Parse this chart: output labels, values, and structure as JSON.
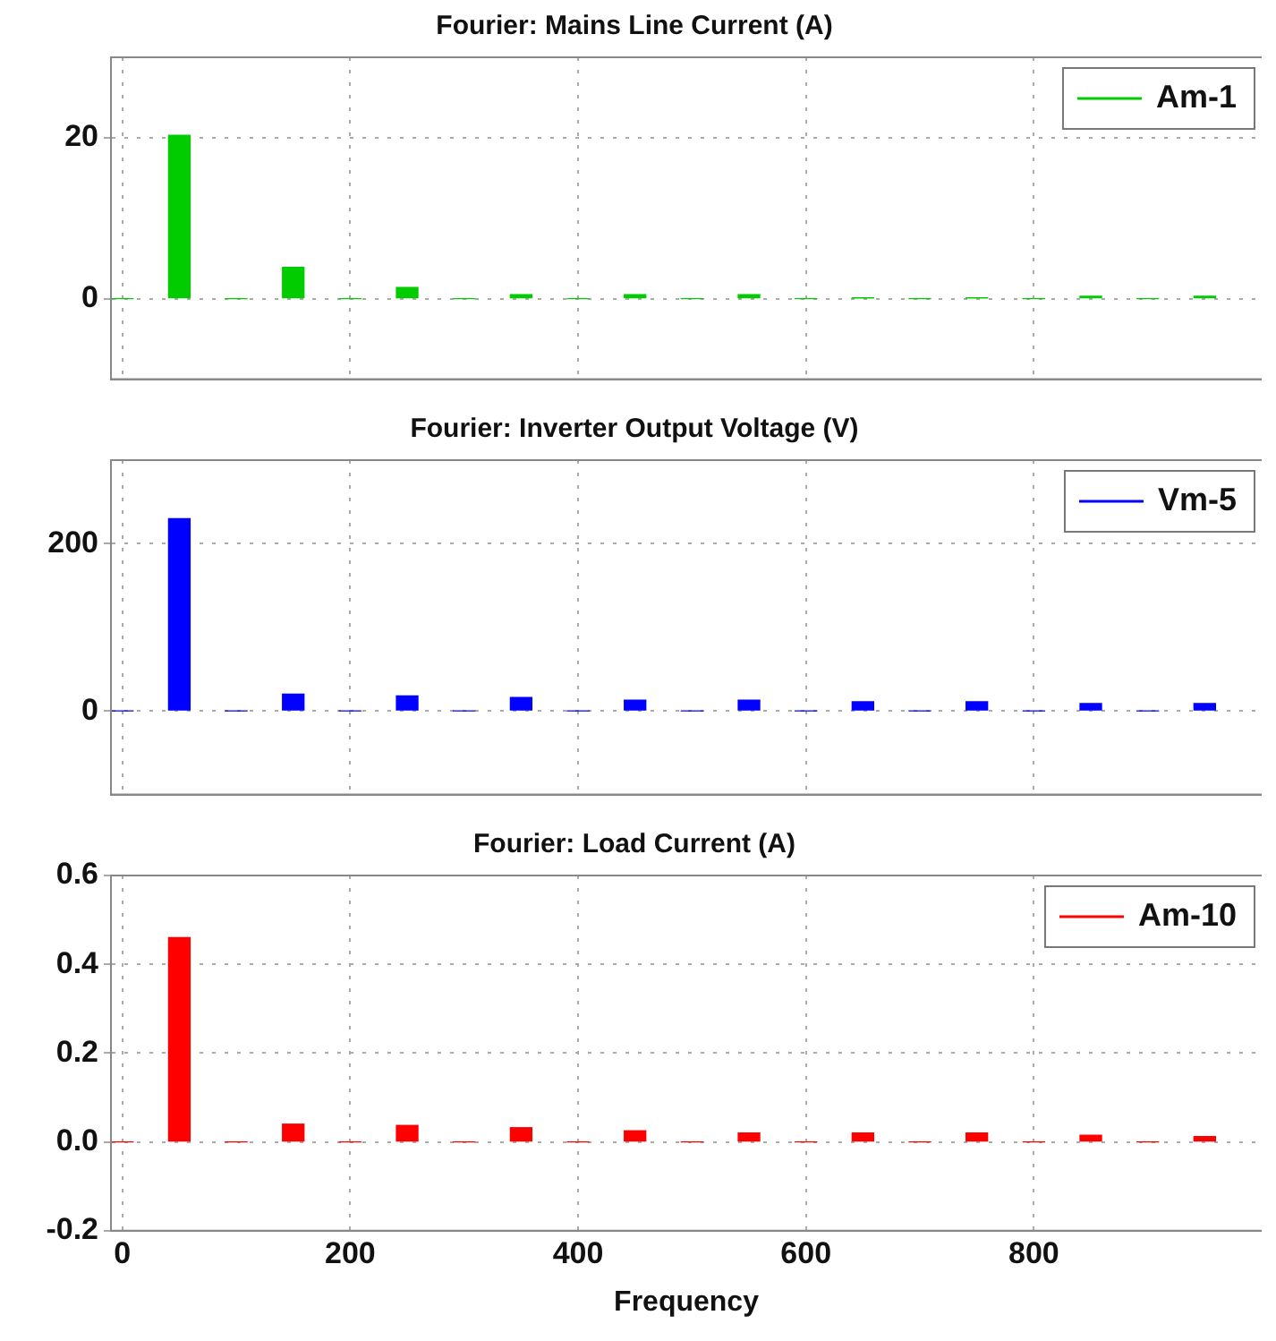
{
  "chart_data": [
    {
      "type": "bar",
      "title": "Fourier: Mains Line Current (A)",
      "x": [
        0,
        50,
        100,
        150,
        200,
        250,
        300,
        350,
        400,
        450,
        500,
        550,
        600,
        650,
        700,
        750,
        800,
        850,
        900,
        950
      ],
      "series": [
        {
          "name": "Am-1",
          "color": "#00cc00",
          "values": [
            0,
            20.3,
            0,
            3.9,
            0,
            1.4,
            0,
            0.5,
            0,
            0.5,
            0,
            0.5,
            0,
            0.1,
            0,
            0.1,
            0,
            0.3,
            0,
            0.3
          ]
        }
      ],
      "xlim": [
        -10,
        1000
      ],
      "xticks": [
        0,
        200,
        400,
        600,
        800
      ],
      "ylim": [
        -10,
        30
      ],
      "yticks": [
        0,
        20
      ],
      "grid": true,
      "legend": "top right",
      "tick_labels": "y"
    },
    {
      "type": "bar",
      "title": "Fourier: Inverter Output Voltage (V)",
      "x": [
        0,
        50,
        100,
        150,
        200,
        250,
        300,
        350,
        400,
        450,
        500,
        550,
        600,
        650,
        700,
        750,
        800,
        850,
        900,
        950
      ],
      "series": [
        {
          "name": "Vm-5",
          "color": "#0000ff",
          "values": [
            0,
            230,
            0,
            20,
            0,
            18,
            0,
            16,
            0,
            13,
            0,
            13,
            0,
            11,
            0,
            11,
            0,
            9,
            0,
            9
          ]
        }
      ],
      "xlim": [
        -10,
        1000
      ],
      "xticks": [
        0,
        200,
        400,
        600,
        800
      ],
      "ylim": [
        -100,
        300
      ],
      "yticks": [
        0,
        200
      ],
      "grid": true,
      "legend": "top right",
      "tick_labels": "y"
    },
    {
      "type": "bar",
      "title": "Fourier: Load Current (A)",
      "xlabel": "Frequency",
      "x": [
        0,
        50,
        100,
        150,
        200,
        250,
        300,
        350,
        400,
        450,
        500,
        550,
        600,
        650,
        700,
        750,
        800,
        850,
        900,
        950
      ],
      "series": [
        {
          "name": "Am-10",
          "color": "#ff0000",
          "values": [
            0,
            0.46,
            0,
            0.04,
            0,
            0.037,
            0,
            0.032,
            0,
            0.025,
            0,
            0.02,
            0,
            0.02,
            0,
            0.02,
            0,
            0.015,
            0,
            0.012
          ]
        }
      ],
      "xlim": [
        -10,
        1000
      ],
      "xticks": [
        0,
        200,
        400,
        600,
        800
      ],
      "ylim": [
        -0.2,
        0.6
      ],
      "yticks": [
        {
          "value": -0.2,
          "label": "-0.2"
        },
        {
          "value": 0,
          "label": "0.0"
        },
        {
          "value": 0.2,
          "label": "0.2"
        },
        {
          "value": 0.4,
          "label": "0.4"
        },
        {
          "value": 0.6,
          "label": "0.6"
        }
      ],
      "grid": true,
      "legend": "top right"
    }
  ]
}
